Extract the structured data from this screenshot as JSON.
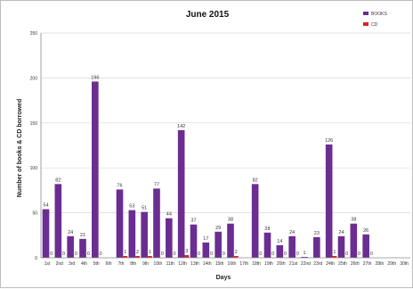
{
  "chart_data": {
    "type": "bar",
    "title": "June 2015",
    "xlabel": "Days",
    "ylabel": "Number of books & CD borrowed",
    "ylim": [
      0,
      250
    ],
    "yticks": [
      0,
      50,
      100,
      150,
      200,
      250
    ],
    "grid": true,
    "legend_position": "top-right",
    "categories": [
      "1st",
      "2nd",
      "3rd",
      "4th",
      "5th",
      "6th",
      "7th",
      "8th",
      "9th",
      "10th",
      "11th",
      "12th",
      "13th",
      "14th",
      "15th",
      "16th",
      "17th",
      "18th",
      "19th",
      "20th",
      "21st",
      "22nd",
      "23rd",
      "24th",
      "25th",
      "26th",
      "27th",
      "28th",
      "29th",
      "30th"
    ],
    "series": [
      {
        "name": "BOOKS",
        "color": "#6b2d91",
        "values": [
          54,
          82,
          24,
          21,
          196,
          76,
          53,
          51,
          77,
          44,
          142,
          37,
          17,
          29,
          38,
          0,
          82,
          28,
          14,
          24,
          1,
          23,
          126,
          24,
          38,
          26
        ],
        "labels": [
          "54",
          "82",
          "24",
          "21",
          "196",
          "76",
          "53",
          "51",
          "77",
          "44",
          "142",
          "37",
          "17",
          "29",
          "38",
          "",
          "82",
          "28",
          "14",
          "24",
          "1",
          "23",
          "126",
          "24",
          "38",
          "26"
        ],
        "positions": [
          0,
          1,
          2,
          3,
          4,
          6,
          7,
          8,
          9,
          10,
          11,
          12,
          13,
          14,
          15,
          16,
          17,
          18,
          19,
          20,
          21,
          22,
          23,
          24,
          25,
          26
        ]
      },
      {
        "name": "CD",
        "color": "#e02020",
        "values": [
          0,
          0,
          0,
          0,
          0,
          1,
          2,
          1,
          0,
          0,
          3,
          0,
          0,
          0,
          2,
          0,
          0,
          0,
          0,
          0,
          0,
          0,
          1,
          0,
          0,
          0
        ],
        "labels": [
          "0",
          "0",
          "0",
          "0",
          "0",
          "1",
          "2",
          "1",
          "0",
          "0",
          "3",
          "0",
          "0",
          "0",
          "2",
          "",
          "0",
          "0",
          "0",
          "0",
          "",
          "",
          "1",
          "0",
          "0",
          "0"
        ],
        "positions": [
          0,
          1,
          2,
          3,
          4,
          6,
          7,
          8,
          9,
          10,
          11,
          12,
          13,
          14,
          15,
          16,
          17,
          18,
          19,
          20,
          21,
          22,
          23,
          24,
          25,
          26
        ]
      }
    ]
  }
}
